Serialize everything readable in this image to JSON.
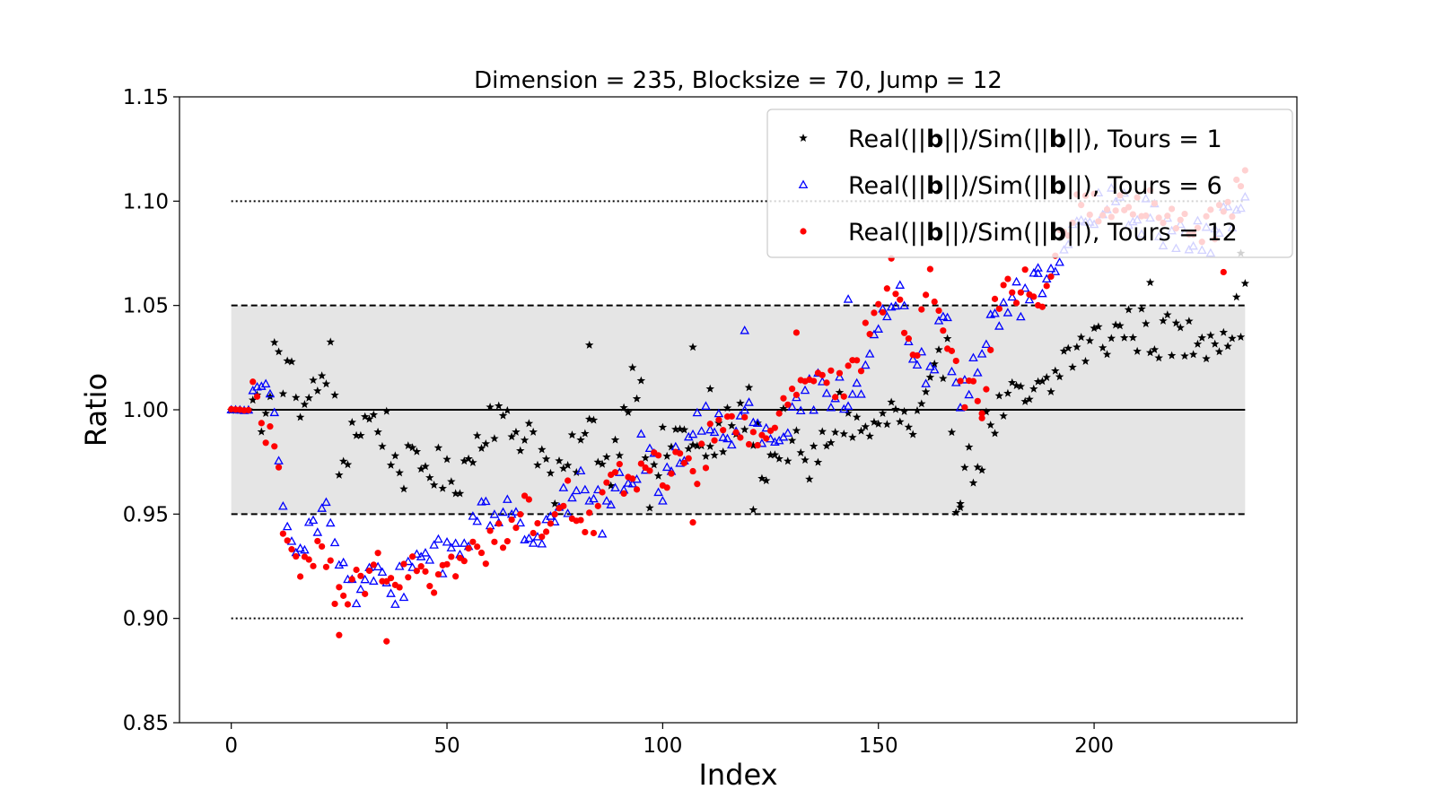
{
  "chart_data": {
    "type": "scatter",
    "title": "Dimension = 235, Blocksize = 70, Jump = 12",
    "xlabel": "Index",
    "ylabel": "Ratio",
    "xlim": [
      -12,
      247
    ],
    "ylim": [
      0.85,
      1.15
    ],
    "x_ticks": [
      0,
      50,
      100,
      150,
      200
    ],
    "y_ticks": [
      0.85,
      0.9,
      0.95,
      1.0,
      1.05,
      1.1,
      1.15
    ],
    "x_tick_labels": [
      "0",
      "50",
      "100",
      "150",
      "200"
    ],
    "y_tick_labels": [
      "0.85",
      "0.90",
      "0.95",
      "1.00",
      "1.05",
      "1.10",
      "1.15"
    ],
    "grid": false,
    "legend_position": "top-right",
    "band": {
      "x_range": [
        0,
        235
      ],
      "y_range": [
        0.95,
        1.05
      ],
      "color": "#e5e5e5"
    },
    "reference_lines": [
      {
        "y": 1.0,
        "style": "solid",
        "x_range": [
          0,
          235
        ]
      },
      {
        "y": 1.05,
        "style": "dashed",
        "x_range": [
          0,
          235
        ]
      },
      {
        "y": 0.95,
        "style": "dashed",
        "x_range": [
          0,
          235
        ]
      },
      {
        "y": 1.1,
        "style": "dotted",
        "x_range": [
          0,
          235
        ]
      },
      {
        "y": 0.9,
        "style": "dotted",
        "x_range": [
          0,
          235
        ]
      }
    ],
    "series": [
      {
        "name": "Real(||b_i*||)/Sim(||b_i*||), Tours = 1",
        "legend_parts": [
          "Real(||",
          "b",
          "||)/Sim(||",
          "b",
          "||), Tours = 1"
        ],
        "marker": "star",
        "color": "#000000",
        "keypoints": [
          [
            0,
            1.0
          ],
          [
            9,
            1.0
          ],
          [
            10,
            1.028
          ],
          [
            12,
            1.018
          ],
          [
            15,
            1.01
          ],
          [
            18,
            1.0
          ],
          [
            21,
            1.015
          ],
          [
            23,
            1.025
          ],
          [
            25,
            0.97
          ],
          [
            28,
            0.99
          ],
          [
            32,
            0.995
          ],
          [
            36,
            0.99
          ],
          [
            38,
            0.975
          ],
          [
            42,
            0.97
          ],
          [
            46,
            0.975
          ],
          [
            50,
            0.965
          ],
          [
            55,
            0.975
          ],
          [
            60,
            1.0
          ],
          [
            64,
            0.99
          ],
          [
            70,
            0.99
          ],
          [
            75,
            0.96
          ],
          [
            80,
            0.98
          ],
          [
            84,
            0.99
          ],
          [
            88,
            0.97
          ],
          [
            92,
            1.01
          ],
          [
            95,
            1.02
          ],
          [
            97,
            0.955
          ],
          [
            100,
            0.98
          ],
          [
            105,
            0.99
          ],
          [
            110,
            0.975
          ],
          [
            115,
            0.99
          ],
          [
            120,
            1.0
          ],
          [
            124,
            0.97
          ],
          [
            128,
            0.99
          ],
          [
            133,
            0.97
          ],
          [
            137,
            0.98
          ],
          [
            141,
            1.0
          ],
          [
            145,
            0.99
          ],
          [
            150,
            0.99
          ],
          [
            154,
            1.0
          ],
          [
            158,
            0.985
          ],
          [
            161,
            1.0
          ],
          [
            163,
            1.01
          ],
          [
            166,
            1.035
          ],
          [
            168,
            0.96
          ],
          [
            170,
            0.97
          ],
          [
            173,
            0.975
          ],
          [
            176,
            0.995
          ],
          [
            181,
            1.003
          ],
          [
            186,
            1.005
          ],
          [
            190,
            1.01
          ],
          [
            193,
            1.025
          ],
          [
            198,
            1.03
          ],
          [
            203,
            1.035
          ],
          [
            208,
            1.04
          ],
          [
            215,
            1.035
          ],
          [
            222,
            1.033
          ],
          [
            228,
            1.038
          ],
          [
            232,
            1.04
          ],
          [
            235,
            1.05
          ]
        ],
        "count": 236,
        "noise": 0.012,
        "outliers": [
          [
            83,
            1.031
          ],
          [
            107,
            1.03
          ],
          [
            111,
            1.01
          ],
          [
            121,
            0.952
          ],
          [
            213,
            1.061
          ],
          [
            234,
            1.075
          ],
          [
            169,
            0.955
          ]
        ]
      },
      {
        "name": "Real(||b_i*||)/Sim(||b_i*||), Tours = 6",
        "legend_parts": [
          "Real(||",
          "b",
          "||)/Sim(||",
          "b",
          "||), Tours = 6"
        ],
        "marker": "triangle",
        "color": "#0000ff",
        "keypoints": [
          [
            0,
            1.0
          ],
          [
            4,
            1.004
          ],
          [
            8,
            1.005
          ],
          [
            10,
            0.995
          ],
          [
            12,
            0.955
          ],
          [
            14,
            0.94
          ],
          [
            17,
            0.942
          ],
          [
            20,
            0.948
          ],
          [
            23,
            0.955
          ],
          [
            25,
            0.922
          ],
          [
            28,
            0.915
          ],
          [
            31,
            0.912
          ],
          [
            34,
            0.922
          ],
          [
            36,
            0.91
          ],
          [
            38,
            0.915
          ],
          [
            42,
            0.925
          ],
          [
            46,
            0.935
          ],
          [
            50,
            0.93
          ],
          [
            54,
            0.935
          ],
          [
            58,
            0.96
          ],
          [
            62,
            0.94
          ],
          [
            66,
            0.955
          ],
          [
            70,
            0.94
          ],
          [
            74,
            0.95
          ],
          [
            78,
            0.955
          ],
          [
            82,
            0.965
          ],
          [
            86,
            0.95
          ],
          [
            90,
            0.96
          ],
          [
            95,
            0.98
          ],
          [
            100,
            0.965
          ],
          [
            105,
            0.985
          ],
          [
            110,
            0.995
          ],
          [
            115,
            0.99
          ],
          [
            120,
            1.0
          ],
          [
            124,
            0.985
          ],
          [
            128,
            0.995
          ],
          [
            132,
            1.005
          ],
          [
            136,
            1.01
          ],
          [
            140,
            1.01
          ],
          [
            144,
            1.005
          ],
          [
            148,
            1.02
          ],
          [
            151,
            1.055
          ],
          [
            155,
            1.05
          ],
          [
            158,
            1.025
          ],
          [
            162,
            1.015
          ],
          [
            165,
            1.05
          ],
          [
            168,
            1.005
          ],
          [
            171,
            1.01
          ],
          [
            174,
            1.025
          ],
          [
            177,
            1.045
          ],
          [
            181,
            1.052
          ],
          [
            186,
            1.056
          ],
          [
            190,
            1.058
          ],
          [
            194,
            1.08
          ],
          [
            198,
            1.09
          ],
          [
            203,
            1.1
          ],
          [
            208,
            1.095
          ],
          [
            214,
            1.09
          ],
          [
            220,
            1.085
          ],
          [
            226,
            1.08
          ],
          [
            231,
            1.09
          ],
          [
            235,
            1.105
          ]
        ],
        "count": 236,
        "noise": 0.01,
        "outliers": [
          [
            119,
            1.038
          ],
          [
            143,
            1.053
          ],
          [
            187,
            1.068
          ]
        ]
      },
      {
        "name": "Real(||b_i*||)/Sim(||b_i*||), Tours = 12",
        "legend_parts": [
          "Real(||",
          "b",
          "||)/Sim(||",
          "b",
          "||), Tours = 12"
        ],
        "marker": "circle",
        "color": "#ff0000",
        "keypoints": [
          [
            0,
            1.0
          ],
          [
            3,
            1.005
          ],
          [
            5,
            1.008
          ],
          [
            7,
            0.992
          ],
          [
            9,
            0.983
          ],
          [
            11,
            0.975
          ],
          [
            12,
            0.935
          ],
          [
            15,
            0.925
          ],
          [
            19,
            0.93
          ],
          [
            23,
            0.932
          ],
          [
            24,
            0.9
          ],
          [
            26,
            0.915
          ],
          [
            30,
            0.915
          ],
          [
            33,
            0.93
          ],
          [
            36,
            0.912
          ],
          [
            40,
            0.918
          ],
          [
            44,
            0.925
          ],
          [
            48,
            0.92
          ],
          [
            52,
            0.925
          ],
          [
            56,
            0.93
          ],
          [
            60,
            0.935
          ],
          [
            64,
            0.945
          ],
          [
            68,
            0.955
          ],
          [
            72,
            0.94
          ],
          [
            76,
            0.96
          ],
          [
            80,
            0.955
          ],
          [
            84,
            0.945
          ],
          [
            88,
            0.965
          ],
          [
            92,
            0.965
          ],
          [
            96,
            0.975
          ],
          [
            100,
            0.97
          ],
          [
            104,
            0.975
          ],
          [
            108,
            0.97
          ],
          [
            112,
            0.99
          ],
          [
            116,
            0.995
          ],
          [
            120,
            0.985
          ],
          [
            124,
            0.99
          ],
          [
            128,
            1.01
          ],
          [
            132,
            1.01
          ],
          [
            136,
            1.02
          ],
          [
            140,
            1.01
          ],
          [
            144,
            1.015
          ],
          [
            148,
            1.04
          ],
          [
            151,
            1.045
          ],
          [
            153,
            1.065
          ],
          [
            156,
            1.045
          ],
          [
            158,
            1.03
          ],
          [
            160,
            1.04
          ],
          [
            162,
            1.065
          ],
          [
            166,
            1.03
          ],
          [
            170,
            1.01
          ],
          [
            174,
            1.005
          ],
          [
            177,
            1.045
          ],
          [
            181,
            1.06
          ],
          [
            185,
            1.06
          ],
          [
            189,
            1.055
          ],
          [
            192,
            1.08
          ],
          [
            196,
            1.095
          ],
          [
            200,
            1.1
          ],
          [
            205,
            1.095
          ],
          [
            210,
            1.098
          ],
          [
            216,
            1.095
          ],
          [
            222,
            1.085
          ],
          [
            228,
            1.09
          ],
          [
            232,
            1.1
          ],
          [
            235,
            1.11
          ]
        ],
        "count": 236,
        "noise": 0.009,
        "outliers": [
          [
            36,
            0.889
          ],
          [
            25,
            0.892
          ],
          [
            107,
            0.946
          ],
          [
            131,
            1.037
          ],
          [
            230,
            1.066
          ],
          [
            174,
            0.996
          ]
        ]
      }
    ]
  }
}
